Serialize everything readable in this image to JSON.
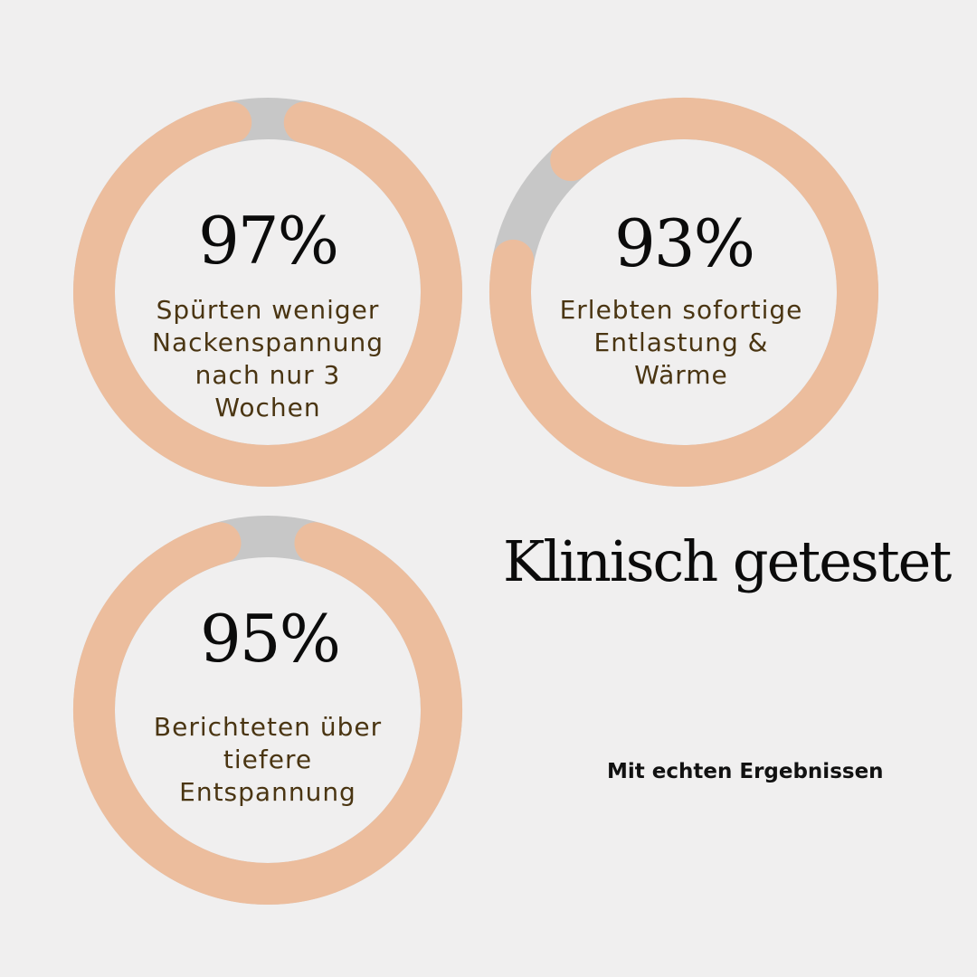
{
  "colors": {
    "background": "#f0efef",
    "ring_fill": "#ecbd9d",
    "ring_track": "#c7c7c7",
    "value_text": "#0b0b0b",
    "caption_text": "#4a3512"
  },
  "headline": "Klinisch getestet",
  "subline": "Mit echten Ergebnissen",
  "chart_data": {
    "type": "pie",
    "style": "donut",
    "stats": [
      {
        "value_label": "97%",
        "value": 97,
        "caption": [
          "Spürten weniger",
          "Nackenspannung",
          "nach nur 3",
          "Wochen"
        ]
      },
      {
        "value_label": "93%",
        "value": 93,
        "caption": [
          "Erlebten sofortige",
          "Entlastung &",
          "Wärme"
        ]
      },
      {
        "value_label": "95%",
        "value": 95,
        "caption": [
          "Berichteten über",
          "tiefere",
          "Entspannung"
        ]
      }
    ]
  }
}
